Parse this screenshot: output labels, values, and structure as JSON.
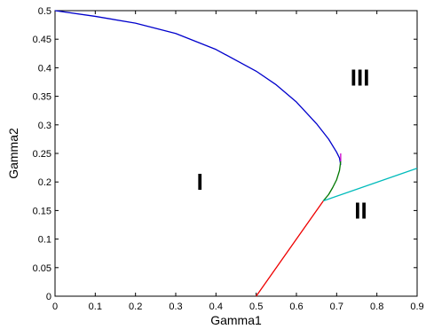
{
  "chart_data": {
    "type": "line",
    "title": "",
    "xlabel": "Gamma1",
    "ylabel": "Gamma2",
    "xlim": [
      0,
      0.9
    ],
    "ylim": [
      0,
      0.5
    ],
    "grid": false,
    "xticks": [
      "0",
      "0.1",
      "0.2",
      "0.3",
      "0.4",
      "0.5",
      "0.6",
      "0.7",
      "0.8",
      "0.9"
    ],
    "yticks": [
      "0",
      "0.05",
      "0.1",
      "0.15",
      "0.2",
      "0.25",
      "0.3",
      "0.35",
      "0.4",
      "0.45",
      "0.5"
    ],
    "series": [
      {
        "color": "#0000cc",
        "points": [
          [
            0,
            0.5
          ],
          [
            0.1,
            0.49
          ],
          [
            0.2,
            0.478
          ],
          [
            0.3,
            0.46
          ],
          [
            0.4,
            0.432
          ],
          [
            0.5,
            0.394
          ],
          [
            0.55,
            0.37
          ],
          [
            0.6,
            0.34
          ],
          [
            0.65,
            0.302
          ],
          [
            0.68,
            0.275
          ],
          [
            0.7,
            0.252
          ],
          [
            0.707,
            0.242
          ],
          [
            0.71,
            0.23
          ]
        ]
      },
      {
        "color": "#cc00cc",
        "points": [
          [
            0.71,
            0.25
          ],
          [
            0.71,
            0.236
          ]
        ]
      },
      {
        "color": "#007700",
        "points": [
          [
            0.71,
            0.236
          ],
          [
            0.707,
            0.22
          ],
          [
            0.7,
            0.204
          ],
          [
            0.69,
            0.19
          ],
          [
            0.68,
            0.178
          ],
          [
            0.667,
            0.167
          ]
        ]
      },
      {
        "color": "#ee0000",
        "points": [
          [
            0.5,
            0
          ],
          [
            0.667,
            0.167
          ]
        ]
      },
      {
        "color": "#00bbbb",
        "points": [
          [
            0.667,
            0.167
          ],
          [
            0.9,
            0.224
          ]
        ]
      }
    ],
    "annotations": [
      {
        "text": "I",
        "x": 0.36,
        "y": 0.2
      },
      {
        "text": "II",
        "x": 0.76,
        "y": 0.15
      },
      {
        "text": "III",
        "x": 0.758,
        "y": 0.383
      }
    ]
  }
}
